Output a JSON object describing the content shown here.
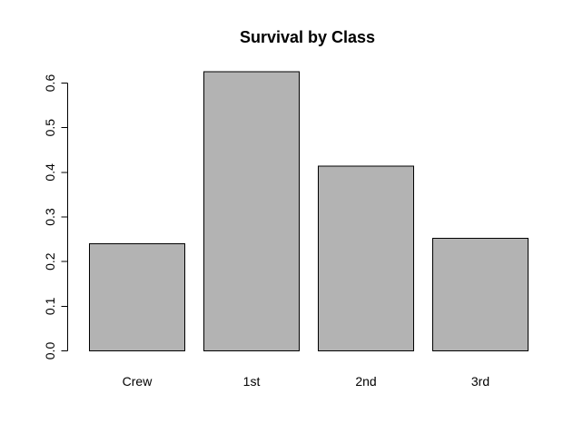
{
  "chart_data": {
    "type": "bar",
    "title": "Survival by Class",
    "xlabel": "",
    "ylabel": "",
    "categories": [
      "Crew",
      "1st",
      "2nd",
      "3rd"
    ],
    "values": [
      0.24,
      0.625,
      0.414,
      0.252
    ],
    "ylim": [
      0,
      0.6
    ],
    "y_ticks": [
      0.0,
      0.1,
      0.2,
      0.3,
      0.4,
      0.5,
      0.6
    ],
    "y_tick_labels": [
      "0.0",
      "0.1",
      "0.2",
      "0.3",
      "0.4",
      "0.5",
      "0.6"
    ],
    "grid": false,
    "legend": "none",
    "colors": {
      "bar_fill": "#b3b3b3",
      "bar_stroke": "#000000",
      "axis": "#000000",
      "background": "#ffffff"
    }
  }
}
